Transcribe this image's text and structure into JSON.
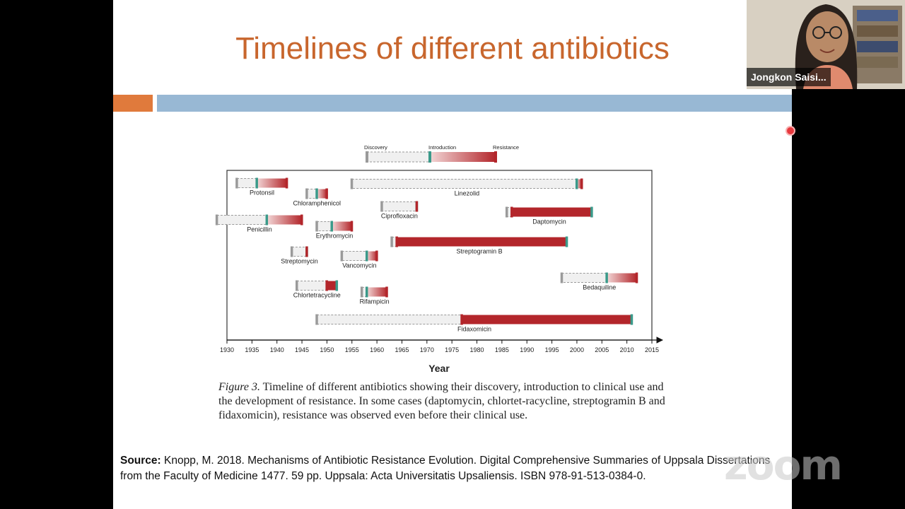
{
  "slide": {
    "title": "Timelines of different antibiotics",
    "caption_label": "Figure 3.",
    "caption_text": " Timeline of different antibiotics showing their discovery, introduction to clinical use and the development of resistance. In some cases (daptomycin, chlortet-racycline, streptogramin B and fidaxomicin), resistance was observed even before their clinical use.",
    "source_label": "Source:",
    "source_text": " Knopp, M. 2018. Mechanisms of Antibiotic Resistance Evolution. Digital Comprehensive Summaries of Uppsala Dissertations from the Faculty of Medicine 1477. 59 pp. Uppsala: Acta Universitatis Upsaliensis. ISBN 978-91-513-0384-0."
  },
  "video": {
    "speaker_name": "Jongkon Saisi..."
  },
  "watermark": "zoom",
  "colors": {
    "title": "#c8662d",
    "accent_orange": "#e07a3c",
    "accent_blue": "#98b8d4",
    "discovery_marker": "#9a9a9a",
    "introduction_marker": "#3a9a8a",
    "resistance": "#b3262b"
  },
  "chart_data": {
    "type": "timeline",
    "xlabel": "Year",
    "xlim": [
      1930,
      2015
    ],
    "ticks": [
      1930,
      1935,
      1940,
      1945,
      1950,
      1955,
      1960,
      1965,
      1970,
      1975,
      1980,
      1985,
      1990,
      1995,
      2000,
      2005,
      2010,
      2015
    ],
    "legend": {
      "discovery": "Discovery",
      "introduction": "Introduction",
      "resistance": "Resistance"
    },
    "antibiotics": [
      {
        "name": "Protonsil",
        "discovery": 1932,
        "introduction": 1936,
        "resistance": 1942
      },
      {
        "name": "Chloramphenicol",
        "discovery": 1946,
        "introduction": 1948,
        "resistance": 1950
      },
      {
        "name": "Penicillin",
        "discovery": 1928,
        "introduction": 1938,
        "resistance": 1945
      },
      {
        "name": "Erythromycin",
        "discovery": 1948,
        "introduction": 1951,
        "resistance": 1955
      },
      {
        "name": "Streptomycin",
        "discovery": 1943,
        "introduction": 1946,
        "resistance": 1946
      },
      {
        "name": "Vancomycin",
        "discovery": 1953,
        "introduction": 1958,
        "resistance": 1960
      },
      {
        "name": "Chlortetracycline",
        "discovery": 1944,
        "introduction": 1952,
        "resistance": 1950
      },
      {
        "name": "Rifampicin",
        "discovery": 1957,
        "introduction": 1958,
        "resistance": 1962
      },
      {
        "name": "Fidaxomicin",
        "discovery": 1948,
        "introduction": 2011,
        "resistance": 1977
      },
      {
        "name": "Linezolid",
        "discovery": 1955,
        "introduction": 2000,
        "resistance": 2001
      },
      {
        "name": "Ciprofloxacin",
        "discovery": 1961,
        "introduction": 1968,
        "resistance": 1968
      },
      {
        "name": "Daptomycin",
        "discovery": 1986,
        "introduction": 2003,
        "resistance": 1987
      },
      {
        "name": "Streptogramin B",
        "discovery": 1963,
        "introduction": 1998,
        "resistance": 1964
      },
      {
        "name": "Bedaquiline",
        "discovery": 1997,
        "introduction": 2006,
        "resistance": 2012
      }
    ]
  }
}
